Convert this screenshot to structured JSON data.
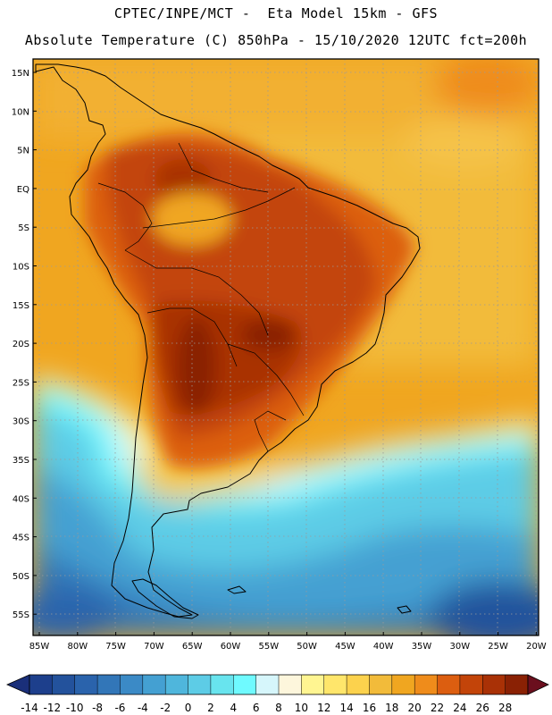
{
  "header": {
    "line1": "CPTEC/INPE/MCT -  Eta Model 15km - GFS",
    "line2": "Absolute Temperature (C) 850hPa - 15/10/2020 12UTC fct=200h"
  },
  "map": {
    "lat_labels": [
      "15N",
      "10N",
      "5N",
      "EQ",
      "5S",
      "10S",
      "15S",
      "20S",
      "25S",
      "30S",
      "35S",
      "40S",
      "45S",
      "50S",
      "55S"
    ],
    "lon_labels": [
      "85W",
      "80W",
      "75W",
      "70W",
      "65W",
      "60W",
      "55W",
      "50W",
      "45W",
      "40W",
      "35W",
      "30W",
      "25W",
      "20W"
    ]
  },
  "colorbar": {
    "labels": [
      "-14",
      "-12",
      "-10",
      "-8",
      "-6",
      "-4",
      "-2",
      "0",
      "2",
      "4",
      "6",
      "8",
      "10",
      "12",
      "14",
      "16",
      "18",
      "20",
      "22",
      "24",
      "26",
      "28"
    ],
    "colors": [
      "#1d3f8c",
      "#23529c",
      "#2a63ac",
      "#3276b8",
      "#3b8ac6",
      "#44a0d2",
      "#4fb6dc",
      "#5dcce6",
      "#68e4ee",
      "#6ffaff",
      "#d6f6fb",
      "#fdf6dc",
      "#fff591",
      "#ffe66b",
      "#fcd24d",
      "#f2bb3a",
      "#f0a620",
      "#ef8c1b",
      "#dc5e10",
      "#c34409",
      "#a93106",
      "#8a2104"
    ],
    "under_color": "#1a2f7a",
    "over_color": "#6b0f1e"
  }
}
